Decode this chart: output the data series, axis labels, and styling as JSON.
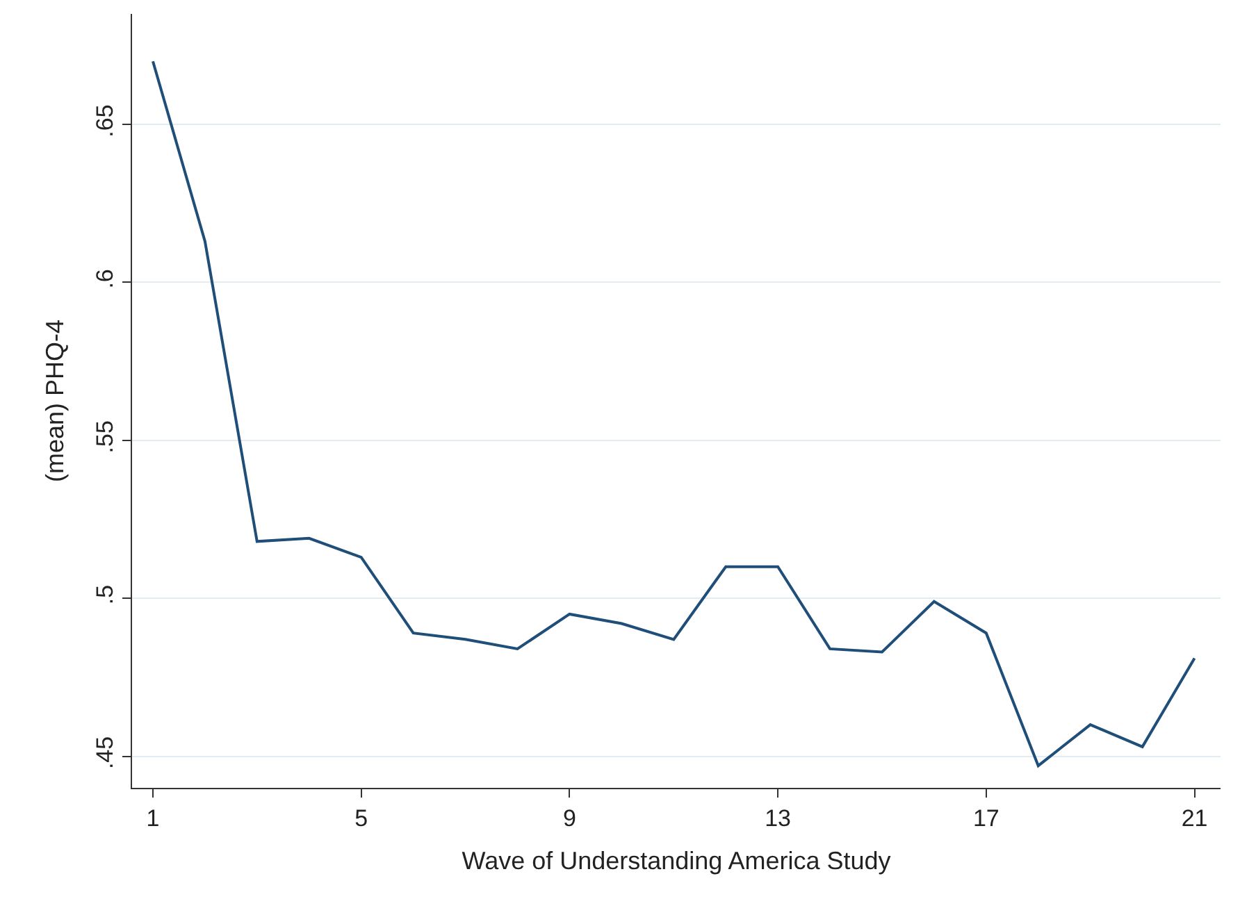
{
  "chart_data": {
    "type": "line",
    "xlabel": "Wave of Understanding America Study",
    "ylabel": "(mean) PHQ-4",
    "x": [
      1,
      2,
      3,
      4,
      5,
      6,
      7,
      8,
      9,
      10,
      11,
      12,
      13,
      14,
      15,
      16,
      17,
      18,
      19,
      20,
      21
    ],
    "series": [
      {
        "color": "#1f4e79",
        "values": [
          0.67,
          0.613,
          0.518,
          0.519,
          0.513,
          0.489,
          0.487,
          0.484,
          0.495,
          0.492,
          0.487,
          0.51,
          0.51,
          0.484,
          0.483,
          0.499,
          0.489,
          0.447,
          0.46,
          0.453,
          0.481
        ]
      }
    ],
    "xlim": [
      0.6,
      21.5
    ],
    "xticks": [
      1,
      5,
      9,
      13,
      17,
      21
    ],
    "ylim": [
      0.44,
      0.685
    ],
    "yticks": [
      {
        "value": 0.45,
        "label": ".45"
      },
      {
        "value": 0.5,
        "label": ".5"
      },
      {
        "value": 0.55,
        "label": ".55"
      },
      {
        "value": 0.6,
        "label": ".6"
      },
      {
        "value": 0.65,
        "label": ".65"
      }
    ],
    "grid": "y",
    "marker": "none",
    "line_style": "solid"
  }
}
